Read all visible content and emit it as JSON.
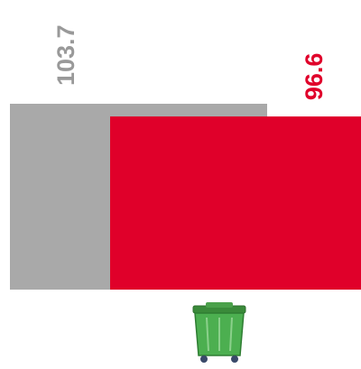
{
  "chart_data": {
    "type": "bar",
    "values": [
      103.7,
      96.6
    ],
    "colors": [
      "#a9a9a9",
      "#e0002a"
    ],
    "label_colors": [
      "#999999",
      "#e0002a"
    ]
  }
}
